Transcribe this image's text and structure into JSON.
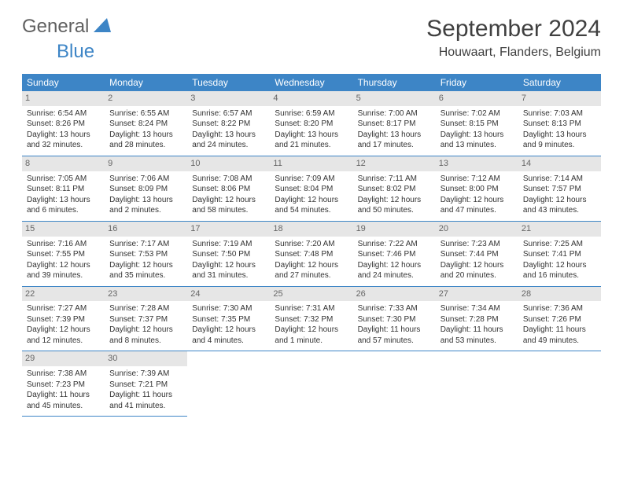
{
  "logo": {
    "text1": "General",
    "text2": "Blue"
  },
  "title": "September 2024",
  "location": "Houwaart, Flanders, Belgium",
  "colors": {
    "header_bg": "#3d85c6",
    "header_text": "#ffffff",
    "daynum_bg": "#e6e6e6",
    "daynum_text": "#666666",
    "body_text": "#333333",
    "logo_gray": "#606060",
    "logo_blue": "#3d85c6",
    "row_border": "#3d85c6"
  },
  "fonts": {
    "title_size_pt": 30,
    "location_size_pt": 16,
    "weekday_size_pt": 12,
    "daynum_size_pt": 11,
    "cell_size_pt": 10
  },
  "weekdays": [
    "Sunday",
    "Monday",
    "Tuesday",
    "Wednesday",
    "Thursday",
    "Friday",
    "Saturday"
  ],
  "layout": {
    "columns": 7,
    "rows": 5,
    "start_offset": 0,
    "days_in_month": 30
  },
  "labels": {
    "sunrise": "Sunrise:",
    "sunset": "Sunset:",
    "daylight": "Daylight:"
  },
  "days": [
    {
      "n": 1,
      "sunrise": "6:54 AM",
      "sunset": "8:26 PM",
      "daylight": "13 hours and 32 minutes."
    },
    {
      "n": 2,
      "sunrise": "6:55 AM",
      "sunset": "8:24 PM",
      "daylight": "13 hours and 28 minutes."
    },
    {
      "n": 3,
      "sunrise": "6:57 AM",
      "sunset": "8:22 PM",
      "daylight": "13 hours and 24 minutes."
    },
    {
      "n": 4,
      "sunrise": "6:59 AM",
      "sunset": "8:20 PM",
      "daylight": "13 hours and 21 minutes."
    },
    {
      "n": 5,
      "sunrise": "7:00 AM",
      "sunset": "8:17 PM",
      "daylight": "13 hours and 17 minutes."
    },
    {
      "n": 6,
      "sunrise": "7:02 AM",
      "sunset": "8:15 PM",
      "daylight": "13 hours and 13 minutes."
    },
    {
      "n": 7,
      "sunrise": "7:03 AM",
      "sunset": "8:13 PM",
      "daylight": "13 hours and 9 minutes."
    },
    {
      "n": 8,
      "sunrise": "7:05 AM",
      "sunset": "8:11 PM",
      "daylight": "13 hours and 6 minutes."
    },
    {
      "n": 9,
      "sunrise": "7:06 AM",
      "sunset": "8:09 PM",
      "daylight": "13 hours and 2 minutes."
    },
    {
      "n": 10,
      "sunrise": "7:08 AM",
      "sunset": "8:06 PM",
      "daylight": "12 hours and 58 minutes."
    },
    {
      "n": 11,
      "sunrise": "7:09 AM",
      "sunset": "8:04 PM",
      "daylight": "12 hours and 54 minutes."
    },
    {
      "n": 12,
      "sunrise": "7:11 AM",
      "sunset": "8:02 PM",
      "daylight": "12 hours and 50 minutes."
    },
    {
      "n": 13,
      "sunrise": "7:12 AM",
      "sunset": "8:00 PM",
      "daylight": "12 hours and 47 minutes."
    },
    {
      "n": 14,
      "sunrise": "7:14 AM",
      "sunset": "7:57 PM",
      "daylight": "12 hours and 43 minutes."
    },
    {
      "n": 15,
      "sunrise": "7:16 AM",
      "sunset": "7:55 PM",
      "daylight": "12 hours and 39 minutes."
    },
    {
      "n": 16,
      "sunrise": "7:17 AM",
      "sunset": "7:53 PM",
      "daylight": "12 hours and 35 minutes."
    },
    {
      "n": 17,
      "sunrise": "7:19 AM",
      "sunset": "7:50 PM",
      "daylight": "12 hours and 31 minutes."
    },
    {
      "n": 18,
      "sunrise": "7:20 AM",
      "sunset": "7:48 PM",
      "daylight": "12 hours and 27 minutes."
    },
    {
      "n": 19,
      "sunrise": "7:22 AM",
      "sunset": "7:46 PM",
      "daylight": "12 hours and 24 minutes."
    },
    {
      "n": 20,
      "sunrise": "7:23 AM",
      "sunset": "7:44 PM",
      "daylight": "12 hours and 20 minutes."
    },
    {
      "n": 21,
      "sunrise": "7:25 AM",
      "sunset": "7:41 PM",
      "daylight": "12 hours and 16 minutes."
    },
    {
      "n": 22,
      "sunrise": "7:27 AM",
      "sunset": "7:39 PM",
      "daylight": "12 hours and 12 minutes."
    },
    {
      "n": 23,
      "sunrise": "7:28 AM",
      "sunset": "7:37 PM",
      "daylight": "12 hours and 8 minutes."
    },
    {
      "n": 24,
      "sunrise": "7:30 AM",
      "sunset": "7:35 PM",
      "daylight": "12 hours and 4 minutes."
    },
    {
      "n": 25,
      "sunrise": "7:31 AM",
      "sunset": "7:32 PM",
      "daylight": "12 hours and 1 minute."
    },
    {
      "n": 26,
      "sunrise": "7:33 AM",
      "sunset": "7:30 PM",
      "daylight": "11 hours and 57 minutes."
    },
    {
      "n": 27,
      "sunrise": "7:34 AM",
      "sunset": "7:28 PM",
      "daylight": "11 hours and 53 minutes."
    },
    {
      "n": 28,
      "sunrise": "7:36 AM",
      "sunset": "7:26 PM",
      "daylight": "11 hours and 49 minutes."
    },
    {
      "n": 29,
      "sunrise": "7:38 AM",
      "sunset": "7:23 PM",
      "daylight": "11 hours and 45 minutes."
    },
    {
      "n": 30,
      "sunrise": "7:39 AM",
      "sunset": "7:21 PM",
      "daylight": "11 hours and 41 minutes."
    }
  ]
}
